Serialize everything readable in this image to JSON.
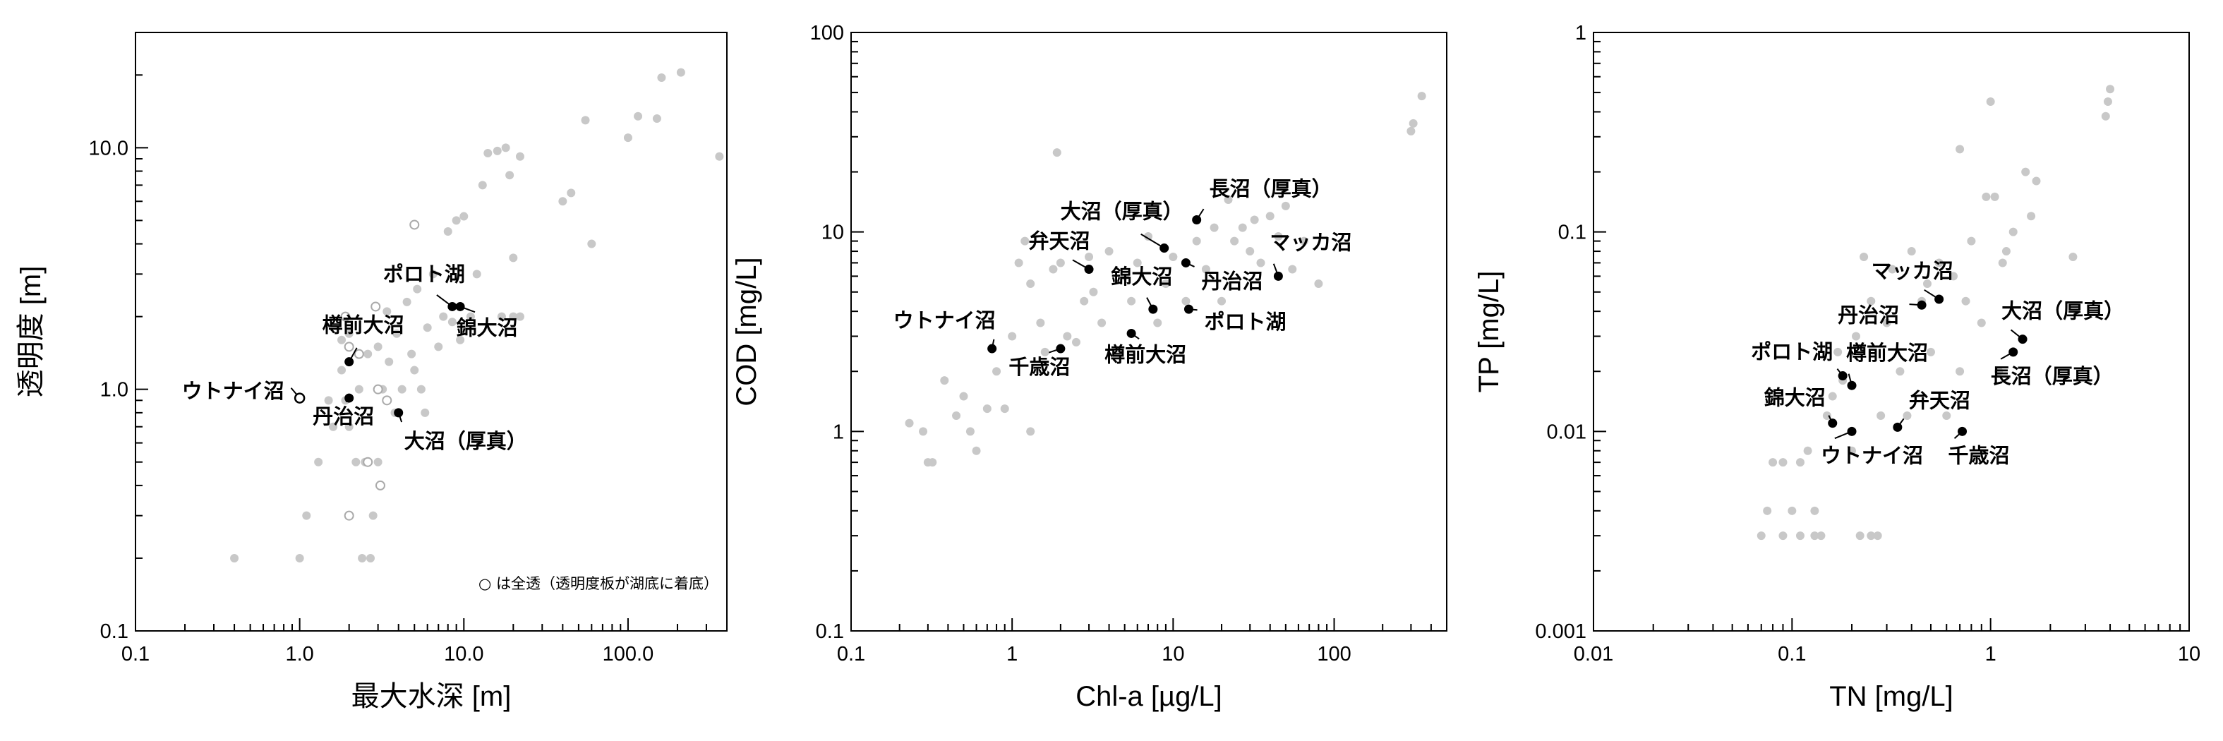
{
  "chart_data": [
    {
      "type": "scatter",
      "xscale": "log",
      "yscale": "log",
      "xlim": [
        0.1,
        400
      ],
      "ylim": [
        0.1,
        30
      ],
      "xlabel": "最大水深 [m]",
      "ylabel": "透明度 [m]",
      "xticks": [
        0.1,
        1,
        10,
        100
      ],
      "xtick_labels": [
        "0.1",
        "1.0",
        "10.0",
        "100.0"
      ],
      "yticks": [
        0.1,
        1,
        10
      ],
      "ytick_labels": [
        "0.1",
        "1.0",
        "10.0"
      ],
      "colors": {
        "background_points": "#c8c8c8",
        "highlight": "#000000"
      },
      "note": "○ は全透（透明度板が湖底に着底）",
      "background_points": [
        [
          0.4,
          0.2
        ],
        [
          1.0,
          0.2
        ],
        [
          1.1,
          0.3
        ],
        [
          1.3,
          0.5
        ],
        [
          1.5,
          0.9
        ],
        [
          1.6,
          0.7
        ],
        [
          1.8,
          1.6
        ],
        [
          1.8,
          1.2
        ],
        [
          1.9,
          0.9
        ],
        [
          2.0,
          0.7
        ],
        [
          2.0,
          1.7
        ],
        [
          2.2,
          0.5
        ],
        [
          2.3,
          1.0
        ],
        [
          2.4,
          0.2
        ],
        [
          2.5,
          0.5
        ],
        [
          2.6,
          1.4
        ],
        [
          2.7,
          0.2
        ],
        [
          2.8,
          0.3
        ],
        [
          3.0,
          0.5
        ],
        [
          3.0,
          1.5
        ],
        [
          3.2,
          1.0
        ],
        [
          3.4,
          2.1
        ],
        [
          3.5,
          1.3
        ],
        [
          3.8,
          0.8
        ],
        [
          3.9,
          1.7
        ],
        [
          4.2,
          1.0
        ],
        [
          4.5,
          2.3
        ],
        [
          4.8,
          1.4
        ],
        [
          5.0,
          1.2
        ],
        [
          5.2,
          2.6
        ],
        [
          5.5,
          1.0
        ],
        [
          5.8,
          0.8
        ],
        [
          6.0,
          1.8
        ],
        [
          6.5,
          3.0
        ],
        [
          7.0,
          1.5
        ],
        [
          7.5,
          2.0
        ],
        [
          8.0,
          4.5
        ],
        [
          8.5,
          1.9
        ],
        [
          9.0,
          5.0
        ],
        [
          9.5,
          1.6
        ],
        [
          10.0,
          5.2
        ],
        [
          11.0,
          2.0
        ],
        [
          12.0,
          3.0
        ],
        [
          13.0,
          7.0
        ],
        [
          14.0,
          9.5
        ],
        [
          16.0,
          9.7
        ],
        [
          17.0,
          2.0
        ],
        [
          18.0,
          10.0
        ],
        [
          19.0,
          7.7
        ],
        [
          20.0,
          3.5
        ],
        [
          20.0,
          2.0
        ],
        [
          22.0,
          2.0
        ],
        [
          22.0,
          9.2
        ],
        [
          40.0,
          6.0
        ],
        [
          45.0,
          6.5
        ],
        [
          55.0,
          13.0
        ],
        [
          60.0,
          4.0
        ],
        [
          100.0,
          11.0
        ],
        [
          115.0,
          13.5
        ],
        [
          150.0,
          13.2
        ],
        [
          160.0,
          19.5
        ],
        [
          210.0,
          20.5
        ],
        [
          360.0,
          9.2
        ]
      ],
      "open_points": [
        [
          1.9,
          2.0
        ],
        [
          2.0,
          1.5
        ],
        [
          2.0,
          0.3
        ],
        [
          2.3,
          1.4
        ],
        [
          2.6,
          0.5
        ],
        [
          2.9,
          2.2
        ],
        [
          3.0,
          1.0
        ],
        [
          3.1,
          0.4
        ],
        [
          3.4,
          0.9
        ],
        [
          5.0,
          4.8
        ]
      ],
      "highlighted": [
        {
          "name": "ウトナイ沼",
          "x": 1.0,
          "y": 0.92,
          "marker": "open",
          "label_anchor": "end",
          "label_dx": -22,
          "label_dy": 0,
          "leader": true
        },
        {
          "name": "樽前大沼",
          "x": 2.0,
          "y": 1.3,
          "label_anchor": "middle",
          "label_dx": 20,
          "label_dy": -42,
          "leader": true
        },
        {
          "name": "丹治沼",
          "x": 2.0,
          "y": 0.92,
          "label_anchor": "middle",
          "label_dx": -8,
          "label_dy": 36,
          "leader": true
        },
        {
          "name": "ポロト湖",
          "x": 8.5,
          "y": 2.2,
          "label_anchor": "middle",
          "label_dx": -40,
          "label_dy": -36,
          "leader": true
        },
        {
          "name": "錦大沼",
          "x": 9.5,
          "y": 2.2,
          "label_anchor": "middle",
          "label_dx": 38,
          "label_dy": 40,
          "leader": true
        },
        {
          "name": "大沼（厚真）",
          "x": 4.0,
          "y": 0.8,
          "label_anchor": "start",
          "label_dx": 8,
          "label_dy": 50,
          "leader": true
        }
      ]
    },
    {
      "type": "scatter",
      "xscale": "log",
      "yscale": "log",
      "xlim": [
        0.1,
        500
      ],
      "ylim": [
        0.1,
        100
      ],
      "xlabel": "Chl-a [µg/L]",
      "ylabel": "COD [mg/L]",
      "xticks": [
        0.1,
        1,
        10,
        100
      ],
      "xtick_labels": [
        "0.1",
        "1",
        "10",
        "100"
      ],
      "yticks": [
        0.1,
        1,
        10,
        100
      ],
      "ytick_labels": [
        "0.1",
        "1",
        "10",
        "100"
      ],
      "colors": {
        "background_points": "#c8c8c8",
        "highlight": "#000000"
      },
      "background_points": [
        [
          0.23,
          1.1
        ],
        [
          0.28,
          1.0
        ],
        [
          0.3,
          0.7
        ],
        [
          0.32,
          0.7
        ],
        [
          0.38,
          1.8
        ],
        [
          0.45,
          1.2
        ],
        [
          0.5,
          1.5
        ],
        [
          0.55,
          1.0
        ],
        [
          0.6,
          0.8
        ],
        [
          0.7,
          1.3
        ],
        [
          0.8,
          2.0
        ],
        [
          0.9,
          1.3
        ],
        [
          1.0,
          3.0
        ],
        [
          1.1,
          7.0
        ],
        [
          1.2,
          9.0
        ],
        [
          1.3,
          1.0
        ],
        [
          1.3,
          5.5
        ],
        [
          1.5,
          3.5
        ],
        [
          1.6,
          2.5
        ],
        [
          1.8,
          6.5
        ],
        [
          1.9,
          25.0
        ],
        [
          2.0,
          7.0
        ],
        [
          2.2,
          3.0
        ],
        [
          2.5,
          2.8
        ],
        [
          2.8,
          4.5
        ],
        [
          3.0,
          7.5
        ],
        [
          3.2,
          5.0
        ],
        [
          3.6,
          3.5
        ],
        [
          4.0,
          8.0
        ],
        [
          4.5,
          2.5
        ],
        [
          5.0,
          6.0
        ],
        [
          5.5,
          4.5
        ],
        [
          6.0,
          7.0
        ],
        [
          7.0,
          9.5
        ],
        [
          8.0,
          3.5
        ],
        [
          9.0,
          5.5
        ],
        [
          10.0,
          7.5
        ],
        [
          12.0,
          4.5
        ],
        [
          14.0,
          9.0
        ],
        [
          16.0,
          6.5
        ],
        [
          18.0,
          10.5
        ],
        [
          20.0,
          4.5
        ],
        [
          22.0,
          14.5
        ],
        [
          24.0,
          9.0
        ],
        [
          27.0,
          10.5
        ],
        [
          30.0,
          8.0
        ],
        [
          32.0,
          11.5
        ],
        [
          35.0,
          7.0
        ],
        [
          40.0,
          12.0
        ],
        [
          45.0,
          9.5
        ],
        [
          50.0,
          13.5
        ],
        [
          55.0,
          6.5
        ],
        [
          65.0,
          9.0
        ],
        [
          80.0,
          5.5
        ],
        [
          300.0,
          32.0
        ],
        [
          310.0,
          35.0
        ],
        [
          350.0,
          48.0
        ]
      ],
      "highlighted": [
        {
          "name": "ウトナイ沼",
          "x": 0.75,
          "y": 2.6,
          "label_anchor": "end",
          "label_dx": 5,
          "label_dy": -30,
          "leader": true
        },
        {
          "name": "千歳沼",
          "x": 2.0,
          "y": 2.6,
          "label_anchor": "middle",
          "label_dx": -30,
          "label_dy": 36,
          "leader": true
        },
        {
          "name": "弁天沼",
          "x": 3.0,
          "y": 6.5,
          "label_anchor": "middle",
          "label_dx": -42,
          "label_dy": -30,
          "leader": true
        },
        {
          "name": "大沼（厚真）",
          "x": 8.8,
          "y": 8.3,
          "label_anchor": "middle",
          "label_dx": -60,
          "label_dy": -42,
          "leader": true
        },
        {
          "name": "長沼（厚真）",
          "x": 14.0,
          "y": 11.5,
          "label_anchor": "start",
          "label_dx": 18,
          "label_dy": -34,
          "leader": true
        },
        {
          "name": "錦大沼",
          "x": 7.5,
          "y": 4.1,
          "label_anchor": "middle",
          "label_dx": -16,
          "label_dy": -36,
          "leader": true
        },
        {
          "name": "丹治沼",
          "x": 12.0,
          "y": 7.0,
          "label_anchor": "start",
          "label_dx": 22,
          "label_dy": 36,
          "leader": true
        },
        {
          "name": "マッカ沼",
          "x": 45.0,
          "y": 6.0,
          "label_anchor": "start",
          "label_dx": -12,
          "label_dy": -38,
          "leader": true
        },
        {
          "name": "ポロト湖",
          "x": 12.5,
          "y": 4.1,
          "label_anchor": "start",
          "label_dx": 22,
          "label_dy": 28,
          "leader": true
        },
        {
          "name": "樽前大沼",
          "x": 5.5,
          "y": 3.1,
          "label_anchor": "middle",
          "label_dx": 20,
          "label_dy": 40,
          "leader": true
        }
      ]
    },
    {
      "type": "scatter",
      "xscale": "log",
      "yscale": "log",
      "xlim": [
        0.01,
        10
      ],
      "ylim": [
        0.001,
        1
      ],
      "xlabel": "TN [mg/L]",
      "ylabel": "TP [mg/L]",
      "xticks": [
        0.01,
        0.1,
        1,
        10
      ],
      "xtick_labels": [
        "0.01",
        "0.1",
        "1",
        "10"
      ],
      "yticks": [
        0.001,
        0.01,
        0.1,
        1
      ],
      "ytick_labels": [
        "0.001",
        "0.01",
        "0.1",
        "1"
      ],
      "colors": {
        "background_points": "#c8c8c8",
        "highlight": "#000000"
      },
      "background_points": [
        [
          0.07,
          0.003
        ],
        [
          0.075,
          0.004
        ],
        [
          0.08,
          0.007
        ],
        [
          0.09,
          0.003
        ],
        [
          0.09,
          0.007
        ],
        [
          0.1,
          0.004
        ],
        [
          0.11,
          0.003
        ],
        [
          0.11,
          0.007
        ],
        [
          0.12,
          0.008
        ],
        [
          0.13,
          0.003
        ],
        [
          0.13,
          0.004
        ],
        [
          0.14,
          0.003
        ],
        [
          0.15,
          0.012
        ],
        [
          0.16,
          0.015
        ],
        [
          0.17,
          0.025
        ],
        [
          0.18,
          0.018
        ],
        [
          0.2,
          0.008
        ],
        [
          0.21,
          0.03
        ],
        [
          0.22,
          0.003
        ],
        [
          0.23,
          0.075
        ],
        [
          0.25,
          0.003
        ],
        [
          0.25,
          0.045
        ],
        [
          0.27,
          0.003
        ],
        [
          0.28,
          0.012
        ],
        [
          0.3,
          0.035
        ],
        [
          0.32,
          0.065
        ],
        [
          0.35,
          0.02
        ],
        [
          0.38,
          0.012
        ],
        [
          0.4,
          0.08
        ],
        [
          0.45,
          0.045
        ],
        [
          0.48,
          0.055
        ],
        [
          0.5,
          0.025
        ],
        [
          0.55,
          0.07
        ],
        [
          0.6,
          0.012
        ],
        [
          0.65,
          0.06
        ],
        [
          0.7,
          0.02
        ],
        [
          0.7,
          0.26
        ],
        [
          0.75,
          0.045
        ],
        [
          0.8,
          0.09
        ],
        [
          0.9,
          0.035
        ],
        [
          0.95,
          0.15
        ],
        [
          1.0,
          0.45
        ],
        [
          1.05,
          0.15
        ],
        [
          1.1,
          0.02
        ],
        [
          1.15,
          0.07
        ],
        [
          1.2,
          0.08
        ],
        [
          1.3,
          0.1
        ],
        [
          1.5,
          0.2
        ],
        [
          1.6,
          0.12
        ],
        [
          1.7,
          0.18
        ],
        [
          2.6,
          0.075
        ],
        [
          3.8,
          0.38
        ],
        [
          3.9,
          0.45
        ],
        [
          4.0,
          0.52
        ]
      ],
      "highlighted": [
        {
          "name": "マッカ沼",
          "x": 0.55,
          "y": 0.046,
          "label_anchor": "middle",
          "label_dx": -38,
          "label_dy": -30,
          "leader": true
        },
        {
          "name": "丹治沼",
          "x": 0.45,
          "y": 0.043,
          "label_anchor": "end",
          "label_dx": -32,
          "label_dy": 24,
          "leader": true
        },
        {
          "name": "大沼（厚真）",
          "x": 1.45,
          "y": 0.029,
          "label_anchor": "start",
          "label_dx": -30,
          "label_dy": -30,
          "leader": true
        },
        {
          "name": "長沼（厚真）",
          "x": 1.3,
          "y": 0.025,
          "label_anchor": "start",
          "label_dx": -32,
          "label_dy": 44,
          "leader": true
        },
        {
          "name": "ポロト湖",
          "x": 0.18,
          "y": 0.019,
          "label_anchor": "end",
          "label_dx": -14,
          "label_dy": -24,
          "leader": true
        },
        {
          "name": "樽前大沼",
          "x": 0.2,
          "y": 0.017,
          "label_anchor": "start",
          "label_dx": -8,
          "label_dy": -36,
          "leader": true
        },
        {
          "name": "錦大沼",
          "x": 0.16,
          "y": 0.011,
          "label_anchor": "end",
          "label_dx": -10,
          "label_dy": -26,
          "leader": true
        },
        {
          "name": "弁天沼",
          "x": 0.34,
          "y": 0.0105,
          "label_anchor": "start",
          "label_dx": 16,
          "label_dy": -28,
          "leader": true
        },
        {
          "name": "ウトナイ沼",
          "x": 0.2,
          "y": 0.01,
          "label_anchor": "start",
          "label_dx": -44,
          "label_dy": 44,
          "leader": true
        },
        {
          "name": "千歳沼",
          "x": 0.72,
          "y": 0.01,
          "label_anchor": "start",
          "label_dx": -20,
          "label_dy": 44,
          "leader": true
        }
      ]
    }
  ]
}
